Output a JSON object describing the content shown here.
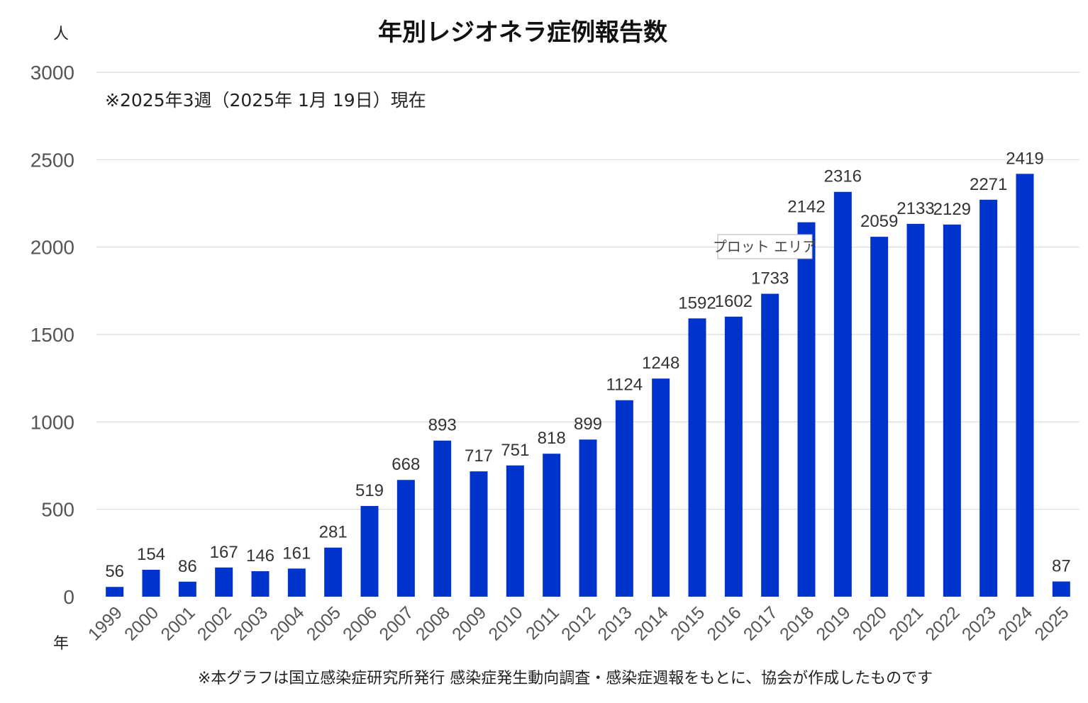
{
  "chart_data": {
    "type": "bar",
    "title": "年別レジオネラ症例報告数",
    "ylabel": "人",
    "xlabel": "年",
    "note": "※2025年3週（2025年 1月 19日）現在",
    "footnote": "※本グラフは国立感染症研究所発行 感染症発生動向調査・感染症週報をもとに、協会が作成したものです",
    "ylim": [
      0,
      3000
    ],
    "yticks": [
      0,
      500,
      1000,
      1500,
      2000,
      2500,
      3000
    ],
    "grid": true,
    "categories": [
      "1999",
      "2000",
      "2001",
      "2002",
      "2003",
      "2004",
      "2005",
      "2006",
      "2007",
      "2008",
      "2009",
      "2010",
      "2011",
      "2012",
      "2013",
      "2014",
      "2015",
      "2016",
      "2017",
      "2018",
      "2019",
      "2020",
      "2021",
      "2022",
      "2023",
      "2024",
      "2025"
    ],
    "values": [
      56,
      154,
      86,
      167,
      146,
      161,
      281,
      519,
      668,
      893,
      717,
      751,
      818,
      899,
      1124,
      1248,
      1592,
      1602,
      1733,
      2142,
      2316,
      2059,
      2133,
      2129,
      2271,
      2419,
      87
    ],
    "bar_color": "#0033cc",
    "tooltip": "プロット エリア"
  }
}
